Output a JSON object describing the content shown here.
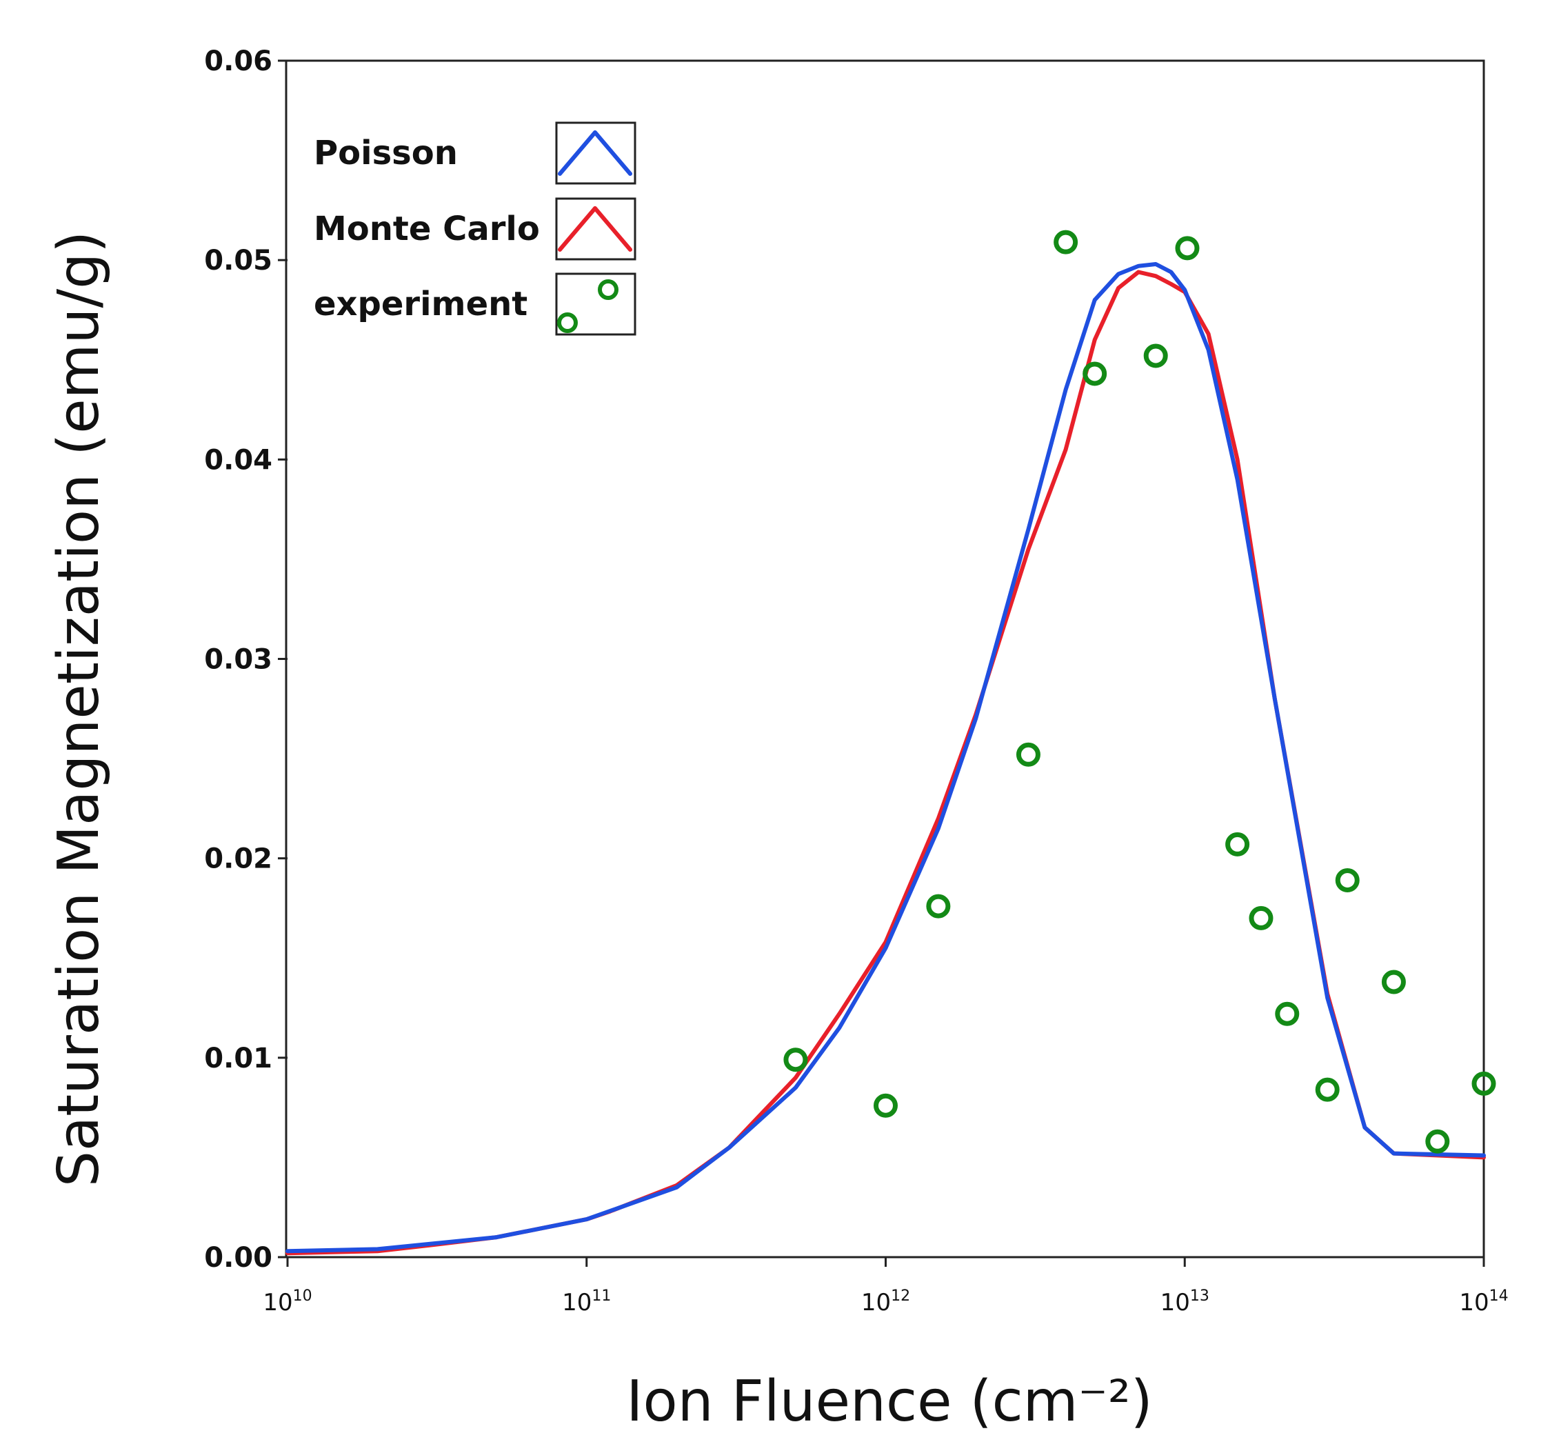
{
  "chart_data": {
    "type": "line",
    "xlabel": "Ion Fluence (cm⁻²)",
    "ylabel": "Saturation Magnetization (emu/g)",
    "xscale": "log",
    "xlim": [
      10000000000.0,
      100000000000000.0
    ],
    "ylim": [
      0,
      0.06
    ],
    "x_ticks": [
      {
        "base": "10",
        "exp": "10",
        "value": 10000000000.0
      },
      {
        "base": "10",
        "exp": "11",
        "value": 100000000000.0
      },
      {
        "base": "10",
        "exp": "12",
        "value": 1000000000000.0
      },
      {
        "base": "10",
        "exp": "13",
        "value": 10000000000000.0
      },
      {
        "base": "10",
        "exp": "14",
        "value": 100000000000000.0
      }
    ],
    "y_ticks": [
      "0.00",
      "0.01",
      "0.02",
      "0.03",
      "0.04",
      "0.05",
      "0.06"
    ],
    "grid": false,
    "legend_position": "top-left",
    "series": [
      {
        "name": "Poisson",
        "kind": "line",
        "color": "#1f4fe0",
        "x": [
          10000000000.0,
          20000000000.0,
          50000000000.0,
          100000000000.0,
          200000000000.0,
          300000000000.0,
          500000000000.0,
          700000000000.0,
          1000000000000.0,
          1500000000000.0,
          2000000000000.0,
          3000000000000.0,
          4000000000000.0,
          5000000000000.0,
          6000000000000.0,
          7000000000000.0,
          8000000000000.0,
          9000000000000.0,
          10000000000000.0,
          12000000000000.0,
          15000000000000.0,
          20000000000000.0,
          30000000000000.0,
          40000000000000.0,
          50000000000000.0,
          100000000000000.0
        ],
        "values": [
          0.0003,
          0.0004,
          0.001,
          0.0019,
          0.0035,
          0.0055,
          0.0085,
          0.0115,
          0.0155,
          0.0215,
          0.027,
          0.0365,
          0.0435,
          0.048,
          0.0493,
          0.0497,
          0.0498,
          0.0494,
          0.0485,
          0.0455,
          0.039,
          0.028,
          0.013,
          0.0065,
          0.0052,
          0.0051
        ]
      },
      {
        "name": "Monte Carlo",
        "kind": "line",
        "color": "#e8202a",
        "x": [
          10000000000.0,
          20000000000.0,
          30000000000.0,
          50000000000.0,
          100000000000.0,
          120000000000.0,
          200000000000.0,
          300000000000.0,
          500000000000.0,
          700000000000.0,
          1000000000000.0,
          1500000000000.0,
          2000000000000.0,
          3000000000000.0,
          4000000000000.0,
          5000000000000.0,
          6000000000000.0,
          7000000000000.0,
          8000000000000.0,
          9000000000000.0,
          10000000000000.0,
          12000000000000.0,
          15000000000000.0,
          20000000000000.0,
          30000000000000.0,
          40000000000000.0,
          50000000000000.0,
          100000000000000.0
        ],
        "values": [
          0.0002,
          0.0003,
          0.0006,
          0.001,
          0.0019,
          0.0023,
          0.0036,
          0.0055,
          0.009,
          0.0122,
          0.0158,
          0.022,
          0.0272,
          0.0355,
          0.0405,
          0.046,
          0.0486,
          0.0494,
          0.0492,
          0.0488,
          0.0484,
          0.0463,
          0.04,
          0.028,
          0.0132,
          0.0065,
          0.0052,
          0.005
        ]
      },
      {
        "name": "experiment",
        "kind": "scatter",
        "color": "#138a16",
        "x": [
          500000000000.0,
          1000000000000.0,
          1500000000000.0,
          3000000000000.0,
          4000000000000.0,
          5000000000000.0,
          8000000000000.0,
          10200000000000.0,
          15000000000000.0,
          18000000000000.0,
          22000000000000.0,
          30000000000000.0,
          35000000000000.0,
          50000000000000.0,
          70000000000000.0,
          100000000000000.0
        ],
        "values": [
          0.0099,
          0.0076,
          0.0176,
          0.0252,
          0.0509,
          0.0443,
          0.0452,
          0.0506,
          0.0207,
          0.017,
          0.0122,
          0.0084,
          0.0189,
          0.0138,
          0.0058,
          0.0087
        ]
      }
    ]
  }
}
